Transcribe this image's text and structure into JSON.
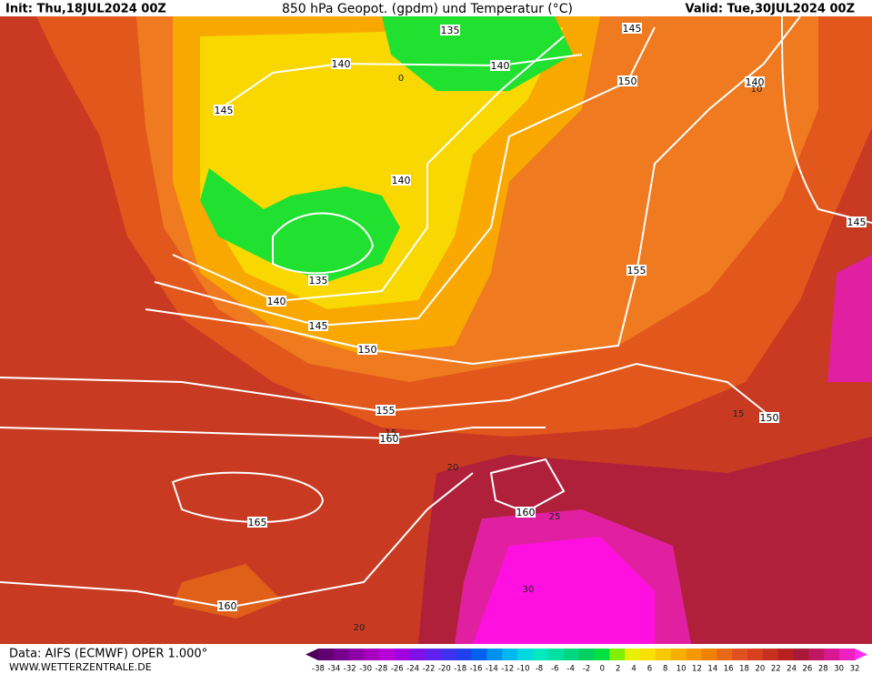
{
  "header": {
    "init": "Init: Thu,18JUL2024 00Z",
    "title": "850 hPa Geopot. (gpdm) und Temperatur (°C)",
    "valid": "Valid: Tue,30JUL2024 00Z"
  },
  "map": {
    "contour_labels": [
      135,
      145,
      140,
      140,
      150,
      140,
      145,
      140,
      145,
      135,
      155,
      140,
      145,
      150,
      155,
      160,
      150,
      160,
      165,
      160
    ],
    "isotherm_labels": [
      0,
      10,
      15,
      15,
      20,
      25,
      30,
      20
    ]
  },
  "footer": {
    "source": "Data: AIFS (ECMWF) OPER 1.000°",
    "website": "WWW.WETTERZENTRALE.DE"
  },
  "colorbar": {
    "labels": [
      -38,
      -34,
      -32,
      -30,
      -28,
      -26,
      -24,
      -22,
      -20,
      -18,
      -16,
      -14,
      -12,
      -10,
      -8,
      -6,
      -4,
      -2,
      0,
      2,
      4,
      6,
      8,
      10,
      12,
      14,
      16,
      18,
      20,
      22,
      24,
      26,
      28,
      30,
      32
    ],
    "colors": [
      "#600070",
      "#780090",
      "#9000a8",
      "#a800c0",
      "#b800d8",
      "#a000e0",
      "#8010e8",
      "#6020f0",
      "#4030f0",
      "#2040f0",
      "#0060f0",
      "#0090f0",
      "#00b8f0",
      "#00d8e0",
      "#00e8c0",
      "#00e0a0",
      "#00d880",
      "#00d060",
      "#00e040",
      "#80f000",
      "#e8f000",
      "#f8e000",
      "#f8c800",
      "#f8b000",
      "#f89800",
      "#f08000",
      "#e86818",
      "#e05020",
      "#d84020",
      "#c83020",
      "#b82020",
      "#a81838",
      "#c01860",
      "#d81890",
      "#f020c0"
    ],
    "low_color": "#4a0058",
    "high_color": "#ff30f0"
  }
}
